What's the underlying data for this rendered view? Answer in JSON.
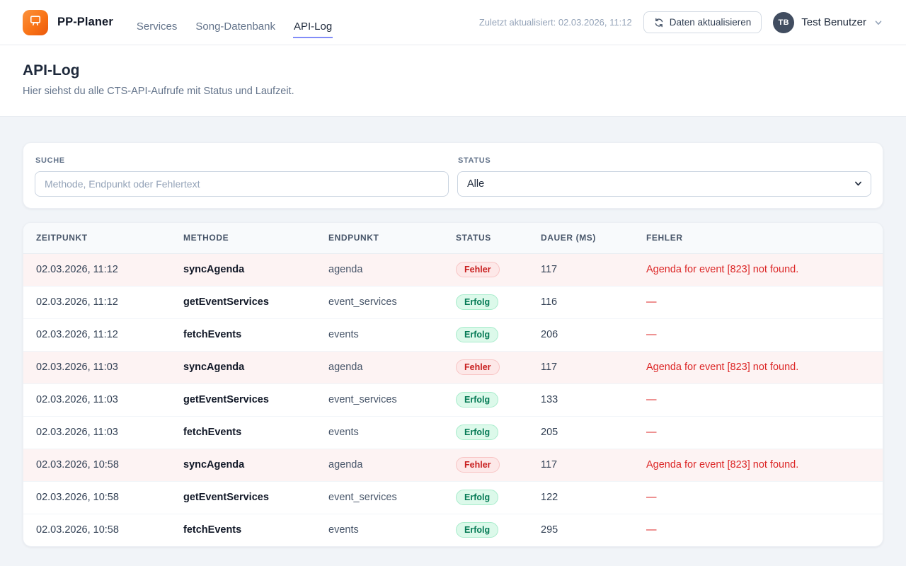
{
  "navbar": {
    "brand": "PP-Planer",
    "nav_items": [
      {
        "id": "services",
        "label": "Services",
        "active": false
      },
      {
        "id": "song-datenbank",
        "label": "Song-Datenbank",
        "active": false
      },
      {
        "id": "api-log",
        "label": "API-Log",
        "active": true
      }
    ],
    "last_updated": "Zuletzt aktualisiert: 02.03.2026, 11:12",
    "refresh_label": "Daten aktualisieren",
    "user": {
      "initials": "TB",
      "name": "Test Benutzer"
    }
  },
  "page_header": {
    "title": "API-Log",
    "subtitle": "Hier siehst du alle CTS-API-Aufrufe mit Status und Laufzeit."
  },
  "filters": {
    "search_label": "Suche",
    "search_placeholder": "Methode, Endpunkt oder Fehlertext",
    "search_value": "",
    "status_label": "Status",
    "status_value": "Alle"
  },
  "table": {
    "columns": [
      "Zeitpunkt",
      "Methode",
      "Endpunkt",
      "Status",
      "Dauer (ms)",
      "Fehler"
    ],
    "status_labels": {
      "error": "Fehler",
      "success": "Erfolg"
    },
    "rows": [
      {
        "zeitpunkt": "02.03.2026, 11:12",
        "methode": "syncAgenda",
        "endpunkt": "agenda",
        "status": "Fehler",
        "dauer": "117",
        "fehler": "Agenda for event [823] not found."
      },
      {
        "zeitpunkt": "02.03.2026, 11:12",
        "methode": "getEventServices",
        "endpunkt": "event_services",
        "status": "Erfolg",
        "dauer": "116",
        "fehler": "—"
      },
      {
        "zeitpunkt": "02.03.2026, 11:12",
        "methode": "fetchEvents",
        "endpunkt": "events",
        "status": "Erfolg",
        "dauer": "206",
        "fehler": "—"
      },
      {
        "zeitpunkt": "02.03.2026, 11:03",
        "methode": "syncAgenda",
        "endpunkt": "agenda",
        "status": "Fehler",
        "dauer": "117",
        "fehler": "Agenda for event [823] not found."
      },
      {
        "zeitpunkt": "02.03.2026, 11:03",
        "methode": "getEventServices",
        "endpunkt": "event_services",
        "status": "Erfolg",
        "dauer": "133",
        "fehler": "—"
      },
      {
        "zeitpunkt": "02.03.2026, 11:03",
        "methode": "fetchEvents",
        "endpunkt": "events",
        "status": "Erfolg",
        "dauer": "205",
        "fehler": "—"
      },
      {
        "zeitpunkt": "02.03.2026, 10:58",
        "methode": "syncAgenda",
        "endpunkt": "agenda",
        "status": "Fehler",
        "dauer": "117",
        "fehler": "Agenda for event [823] not found."
      },
      {
        "zeitpunkt": "02.03.2026, 10:58",
        "methode": "getEventServices",
        "endpunkt": "event_services",
        "status": "Erfolg",
        "dauer": "122",
        "fehler": "—"
      },
      {
        "zeitpunkt": "02.03.2026, 10:58",
        "methode": "fetchEvents",
        "endpunkt": "events",
        "status": "Erfolg",
        "dauer": "295",
        "fehler": "—"
      }
    ]
  },
  "colors": {
    "accent_orange": "#f97316",
    "active_tab_underline": "#818cf8",
    "error_text": "#dc2626",
    "error_row_bg": "#fdf3f3",
    "success_text": "#057a55"
  }
}
